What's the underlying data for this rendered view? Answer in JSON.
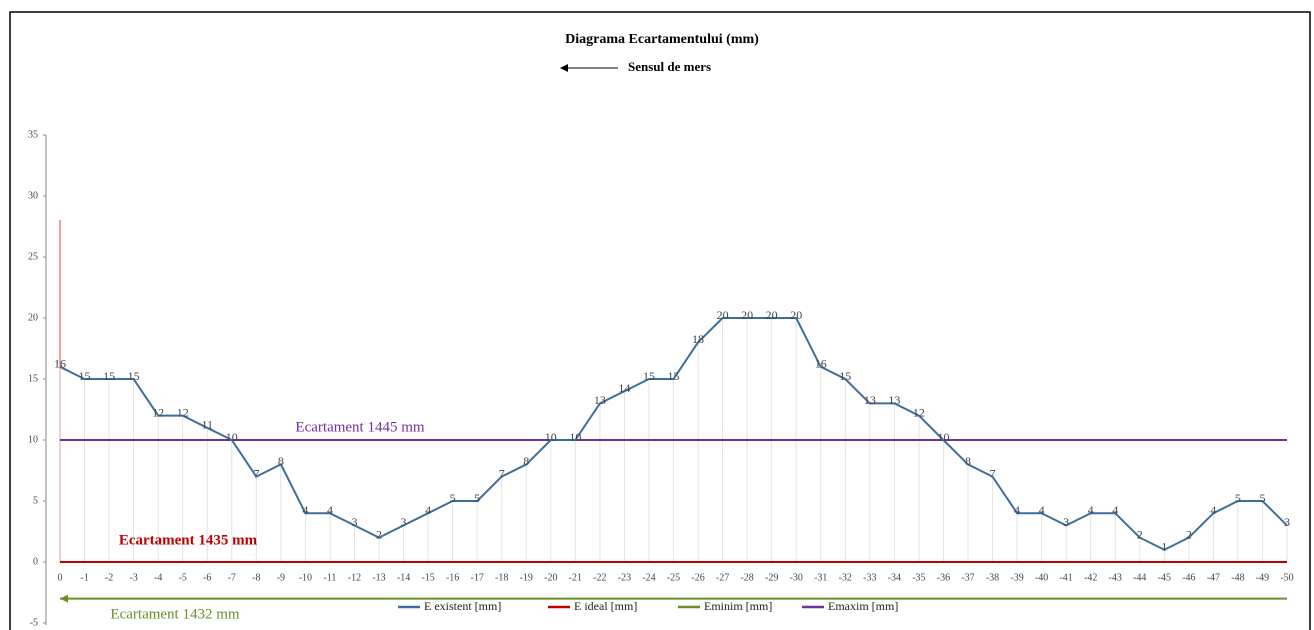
{
  "chart_data": {
    "type": "line",
    "title": "Diagrama Ecartamentului (mm)",
    "subtitle": "Sensul de mers",
    "categories": [
      "0",
      "-1",
      "-2",
      "-3",
      "-4",
      "-5",
      "-6",
      "-7",
      "-8",
      "-9",
      "-10",
      "-11",
      "-12",
      "-13",
      "-14",
      "-15",
      "-16",
      "-17",
      "-18",
      "-19",
      "-20",
      "-21",
      "-22",
      "-23",
      "-24",
      "-25",
      "-26",
      "-27",
      "-28",
      "-29",
      "-30",
      "-31",
      "-32",
      "-33",
      "-34",
      "-35",
      "-36",
      "-37",
      "-38",
      "-39",
      "-40",
      "-41",
      "-42",
      "-43",
      "-44",
      "-45",
      "-46",
      "-47",
      "-48",
      "-49",
      "-50"
    ],
    "series": [
      {
        "name": "E existent [mm]",
        "color": "#3d6e9e",
        "data_labels": true,
        "values": [
          16,
          15,
          15,
          15,
          12,
          12,
          11,
          10,
          7,
          8,
          4,
          4,
          3,
          2,
          3,
          4,
          5,
          5,
          7,
          8,
          10,
          10,
          13,
          14,
          15,
          15,
          18,
          20,
          20,
          20,
          20,
          16,
          15,
          13,
          13,
          12,
          10,
          8,
          7,
          4,
          4,
          3,
          4,
          4,
          2,
          1,
          2,
          4,
          5,
          5,
          3
        ]
      },
      {
        "name": "E ideal [mm]",
        "color": "#c00000",
        "values": [
          0,
          0,
          0,
          0,
          0,
          0,
          0,
          0,
          0,
          0,
          0,
          0,
          0,
          0,
          0,
          0,
          0,
          0,
          0,
          0,
          0,
          0,
          0,
          0,
          0,
          0,
          0,
          0,
          0,
          0,
          0,
          0,
          0,
          0,
          0,
          0,
          0,
          0,
          0,
          0,
          0,
          0,
          0,
          0,
          0,
          0,
          0,
          0,
          0,
          0,
          0
        ]
      },
      {
        "name": "Eminim [mm]",
        "color": "#6b8e23",
        "values": [
          -3,
          -3,
          -3,
          -3,
          -3,
          -3,
          -3,
          -3,
          -3,
          -3,
          -3,
          -3,
          -3,
          -3,
          -3,
          -3,
          -3,
          -3,
          -3,
          -3,
          -3,
          -3,
          -3,
          -3,
          -3,
          -3,
          -3,
          -3,
          -3,
          -3,
          -3,
          -3,
          -3,
          -3,
          -3,
          -3,
          -3,
          -3,
          -3,
          -3,
          -3,
          -3,
          -3,
          -3,
          -3,
          -3,
          -3,
          -3,
          -3,
          -3,
          -3
        ]
      },
      {
        "name": "Emaxim [mm]",
        "color": "#7030a0",
        "values": [
          10,
          10,
          10,
          10,
          10,
          10,
          10,
          10,
          10,
          10,
          10,
          10,
          10,
          10,
          10,
          10,
          10,
          10,
          10,
          10,
          10,
          10,
          10,
          10,
          10,
          10,
          10,
          10,
          10,
          10,
          10,
          10,
          10,
          10,
          10,
          10,
          10,
          10,
          10,
          10,
          10,
          10,
          10,
          10,
          10,
          10,
          10,
          10,
          10,
          10,
          10
        ]
      }
    ],
    "annotations": [
      {
        "text": "Ecartament 1445 mm",
        "color": "#7030a0"
      },
      {
        "text": "Ecartament 1435 mm",
        "color": "#c00000"
      },
      {
        "text": "Ecartament 1432 mm",
        "color": "#6b8e23"
      }
    ],
    "ylim": [
      -5,
      35
    ],
    "yticks": [
      -5,
      0,
      5,
      10,
      15,
      20,
      25,
      30,
      35
    ]
  }
}
